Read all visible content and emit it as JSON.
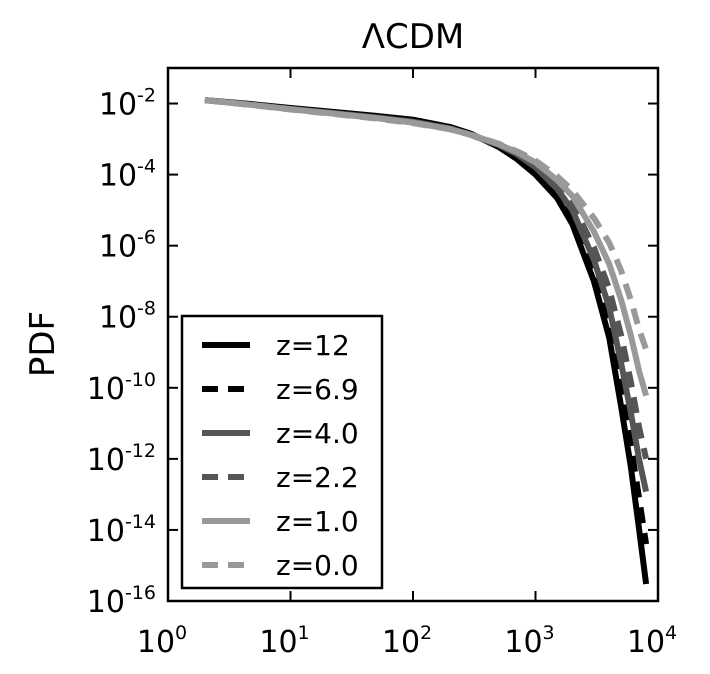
{
  "chart_data": {
    "type": "line",
    "title": "ΛCDM",
    "xlabel": "",
    "ylabel": "PDF",
    "xscale": "log",
    "yscale": "log",
    "xlim": [
      1,
      10000
    ],
    "ylim": [
      1e-16,
      0.1
    ],
    "x_ticks": [
      {
        "value": 1,
        "base": "10",
        "exp": "0"
      },
      {
        "value": 10,
        "base": "10",
        "exp": "1"
      },
      {
        "value": 100,
        "base": "10",
        "exp": "2"
      },
      {
        "value": 1000,
        "base": "10",
        "exp": "3"
      },
      {
        "value": 10000,
        "base": "10",
        "exp": "4"
      }
    ],
    "y_ticks": [
      {
        "value": 0.01,
        "base": "10",
        "exp": "-2"
      },
      {
        "value": 0.0001,
        "base": "10",
        "exp": "-4"
      },
      {
        "value": 1e-06,
        "base": "10",
        "exp": "-6"
      },
      {
        "value": 1e-08,
        "base": "10",
        "exp": "-8"
      },
      {
        "value": 1e-10,
        "base": "10",
        "exp": "-10"
      },
      {
        "value": 1e-12,
        "base": "10",
        "exp": "-12"
      },
      {
        "value": 1e-14,
        "base": "10",
        "exp": "-14"
      },
      {
        "value": 1e-16,
        "base": "10",
        "exp": "-16"
      }
    ],
    "legend_position": "lower-left",
    "grid": false,
    "series": [
      {
        "name": "z=12",
        "color": "#000000",
        "dash": "solid",
        "x": [
          2,
          5,
          10,
          20,
          50,
          100,
          200,
          300,
          500,
          700,
          1000,
          1500,
          2000,
          3000,
          4000,
          5000,
          6000,
          7000,
          8000
        ],
        "y": [
          0.0125,
          0.0095,
          0.0075,
          0.006,
          0.0045,
          0.0035,
          0.0022,
          0.0014,
          0.0006,
          0.00028,
          0.0001,
          2.2e-05,
          4e-06,
          1e-07,
          2.5e-09,
          3e-11,
          6e-13,
          1.1e-14,
          3e-16
        ]
      },
      {
        "name": "z=6.9",
        "color": "#000000",
        "dash": "dashed",
        "x": [
          2,
          5,
          10,
          20,
          50,
          100,
          200,
          300,
          500,
          700,
          1000,
          1500,
          2000,
          3000,
          4000,
          5000,
          6000,
          7000,
          8000
        ],
        "y": [
          0.0125,
          0.0093,
          0.0073,
          0.0058,
          0.0043,
          0.0033,
          0.0021,
          0.0013,
          0.00065,
          0.00033,
          0.00013,
          3e-05,
          6e-06,
          2e-07,
          6e-09,
          1e-10,
          2.5e-12,
          8e-14,
          4e-15
        ]
      },
      {
        "name": "z=4.0",
        "color": "#555555",
        "dash": "solid",
        "x": [
          2,
          5,
          10,
          20,
          50,
          100,
          200,
          300,
          500,
          700,
          1000,
          1500,
          2000,
          3000,
          4000,
          5000,
          6000,
          7000,
          8000
        ],
        "y": [
          0.0125,
          0.0092,
          0.0071,
          0.0056,
          0.0041,
          0.0031,
          0.002,
          0.0013,
          0.00068,
          0.00038,
          0.00016,
          4e-05,
          1e-05,
          4e-07,
          1.8e-08,
          5e-10,
          2e-11,
          1e-12,
          1.2e-13
        ]
      },
      {
        "name": "z=2.2",
        "color": "#555555",
        "dash": "dashed",
        "x": [
          2,
          5,
          10,
          20,
          50,
          100,
          200,
          300,
          500,
          700,
          1000,
          1500,
          2000,
          3000,
          4000,
          5000,
          6000,
          7000,
          8000
        ],
        "y": [
          0.0125,
          0.009,
          0.007,
          0.0055,
          0.004,
          0.003,
          0.002,
          0.0013,
          0.0007,
          0.0004,
          0.00019,
          5.5e-05,
          1.5e-05,
          9e-07,
          6e-08,
          3e-09,
          1.5e-10,
          8e-12,
          1e-12
        ]
      },
      {
        "name": "z=1.0",
        "color": "#999999",
        "dash": "solid",
        "x": [
          2,
          5,
          10,
          20,
          50,
          100,
          200,
          300,
          500,
          700,
          1000,
          1500,
          2000,
          3000,
          4000,
          5000,
          6000,
          7000,
          8000
        ],
        "y": [
          0.0125,
          0.009,
          0.0069,
          0.0054,
          0.0039,
          0.0029,
          0.0019,
          0.0013,
          0.00072,
          0.00043,
          0.00022,
          7e-05,
          2.5e-05,
          2.5e-06,
          3e-07,
          3e-08,
          3e-09,
          3e-10,
          6e-11
        ]
      },
      {
        "name": "z=0.0",
        "color": "#999999",
        "dash": "dashed",
        "x": [
          2,
          5,
          10,
          20,
          50,
          100,
          200,
          300,
          500,
          700,
          1000,
          1500,
          2000,
          3000,
          4000,
          5000,
          6000,
          7000,
          8000
        ],
        "y": [
          0.0125,
          0.0089,
          0.0068,
          0.0053,
          0.0038,
          0.0028,
          0.0019,
          0.0013,
          0.00074,
          0.00046,
          0.00025,
          9e-05,
          3.6e-05,
          6e-06,
          1.2e-06,
          2e-07,
          3e-08,
          4.5e-09,
          1.2e-09
        ]
      }
    ]
  }
}
